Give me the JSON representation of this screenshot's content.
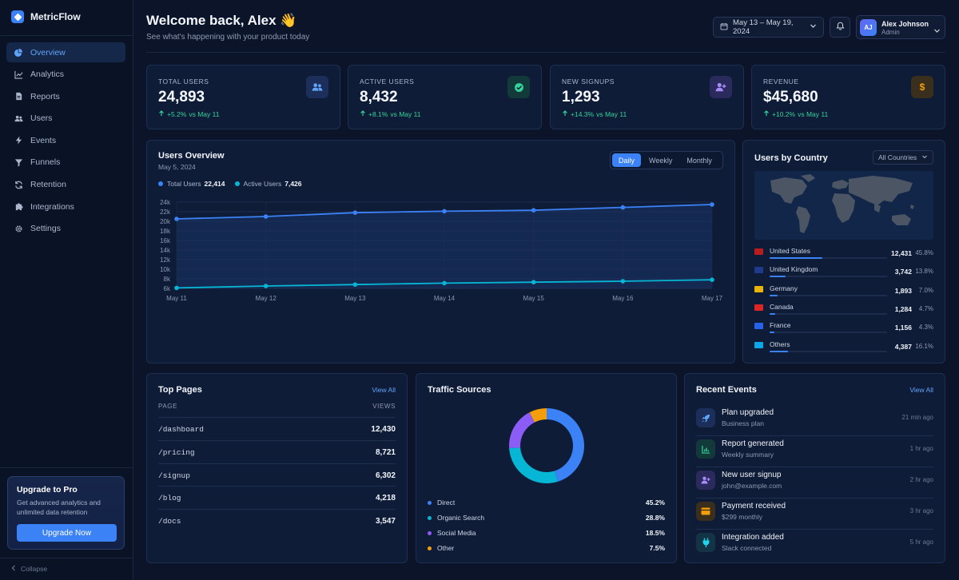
{
  "brand": {
    "name": "MetricFlow"
  },
  "nav": [
    {
      "label": "Overview",
      "icon": "pie-chart-icon",
      "active": true
    },
    {
      "label": "Analytics",
      "icon": "line-chart-icon"
    },
    {
      "label": "Reports",
      "icon": "document-icon"
    },
    {
      "label": "Users",
      "icon": "users-icon"
    },
    {
      "label": "Events",
      "icon": "bolt-icon"
    },
    {
      "label": "Funnels",
      "icon": "funnel-icon"
    },
    {
      "label": "Retention",
      "icon": "refresh-icon"
    },
    {
      "label": "Integrations",
      "icon": "puzzle-icon"
    },
    {
      "label": "Settings",
      "icon": "gear-icon"
    }
  ],
  "upsell": {
    "title": "Upgrade to Pro",
    "text": "Get advanced analytics and unlimited data retention",
    "button": "Upgrade Now"
  },
  "collapse": "Collapse",
  "header": {
    "title": "Welcome back, Alex 👋",
    "subtitle": "See what's happening with your product today",
    "date_range": "May 13 – May 19, 2024"
  },
  "profile": {
    "initials": "AJ",
    "name": "Alex Johnson",
    "role": "Admin"
  },
  "stats": [
    {
      "label": "TOTAL USERS",
      "value": "24,893",
      "delta": "+5.2%",
      "compare": "vs May 11",
      "icon": "users-icon",
      "color": "#60a5fa"
    },
    {
      "label": "ACTIVE USERS",
      "value": "8,432",
      "delta": "+8.1%",
      "compare": "vs May 11",
      "icon": "check-badge-icon",
      "color": "#34d399"
    },
    {
      "label": "NEW SIGNUPS",
      "value": "1,293",
      "delta": "+14.3%",
      "compare": "vs May 11",
      "icon": "user-plus-icon",
      "color": "#a78bfa"
    },
    {
      "label": "REVENUE",
      "value": "$45,680",
      "delta": "+10.2%",
      "compare": "vs May 11",
      "icon": "dollar-icon",
      "color": "#f59e0b"
    }
  ],
  "users_overview": {
    "title": "Users Overview",
    "date": "May 5, 2024",
    "tabs": [
      "Daily",
      "Weekly",
      "Monthly"
    ],
    "active_tab": "Daily",
    "legend_total_label": "Total Users",
    "legend_total_value": "22,414",
    "legend_active_label": "Active Users",
    "legend_active_value": "7,426"
  },
  "chart_data": {
    "type": "line",
    "x": [
      "May 11",
      "May 12",
      "May 13",
      "May 14",
      "May 15",
      "May 16",
      "May 17"
    ],
    "y_ticks": [
      "24k",
      "22k",
      "20k",
      "18k",
      "16k",
      "14k",
      "12k",
      "10k",
      "8k",
      "6k"
    ],
    "ylim": [
      6000,
      24000
    ],
    "grid": true,
    "series": [
      {
        "name": "Total Users",
        "color": "#3b82f6",
        "values": [
          20500,
          21000,
          21800,
          22100,
          22300,
          22900,
          23500
        ]
      },
      {
        "name": "Active Users",
        "color": "#06b6d4",
        "values": [
          6100,
          6500,
          6800,
          7100,
          7300,
          7500,
          7800
        ]
      }
    ]
  },
  "countries": {
    "title": "Users by Country",
    "filter": "All Countries",
    "items": [
      {
        "name": "United States",
        "value": "12,431",
        "pct": "45.8%",
        "share": 0.458,
        "flag": "#b91c1c"
      },
      {
        "name": "United Kingdom",
        "value": "3,742",
        "pct": "13.8%",
        "share": 0.138,
        "flag": "#1e3a8a"
      },
      {
        "name": "Germany",
        "value": "1,893",
        "pct": "7.0%",
        "share": 0.07,
        "flag": "#eab308"
      },
      {
        "name": "Canada",
        "value": "1,284",
        "pct": "4.7%",
        "share": 0.047,
        "flag": "#dc2626"
      },
      {
        "name": "France",
        "value": "1,156",
        "pct": "4.3%",
        "share": 0.043,
        "flag": "#2563eb"
      },
      {
        "name": "Others",
        "value": "4,387",
        "pct": "16.1%",
        "share": 0.161,
        "flag": "#0ea5e9"
      }
    ]
  },
  "top_pages": {
    "title": "Top Pages",
    "view_all": "View All",
    "col_page": "PAGE",
    "col_views": "VIEWS",
    "rows": [
      {
        "page": "/dashboard",
        "views": "12,430"
      },
      {
        "page": "/pricing",
        "views": "8,721"
      },
      {
        "page": "/signup",
        "views": "6,302"
      },
      {
        "page": "/blog",
        "views": "4,218"
      },
      {
        "page": "/docs",
        "views": "3,547"
      }
    ]
  },
  "traffic": {
    "title": "Traffic Sources",
    "items": [
      {
        "name": "Direct",
        "pct": "45.2%",
        "value": 45.2,
        "color": "#3b82f6"
      },
      {
        "name": "Organic Search",
        "pct": "28.8%",
        "value": 28.8,
        "color": "#06b6d4"
      },
      {
        "name": "Social Media",
        "pct": "18.5%",
        "value": 18.5,
        "color": "#8b5cf6"
      },
      {
        "name": "Other",
        "pct": "7.5%",
        "value": 7.5,
        "color": "#f59e0b"
      }
    ]
  },
  "events": {
    "title": "Recent Events",
    "view_all": "View All",
    "items": [
      {
        "title": "Plan upgraded",
        "sub": "Business plan",
        "time": "21 min ago",
        "icon": "rocket-icon",
        "color": "#60a5fa"
      },
      {
        "title": "Report generated",
        "sub": "Weekly summary",
        "time": "1 hr ago",
        "icon": "chart-icon",
        "color": "#34d399"
      },
      {
        "title": "New user signup",
        "sub": "john@example.com",
        "time": "2 hr ago",
        "icon": "user-plus-icon",
        "color": "#a78bfa"
      },
      {
        "title": "Payment received",
        "sub": "$299 monthly",
        "time": "3 hr ago",
        "icon": "card-icon",
        "color": "#f59e0b"
      },
      {
        "title": "Integration added",
        "sub": "Slack connected",
        "time": "5 hr ago",
        "icon": "plug-icon",
        "color": "#22d3ee"
      }
    ]
  }
}
